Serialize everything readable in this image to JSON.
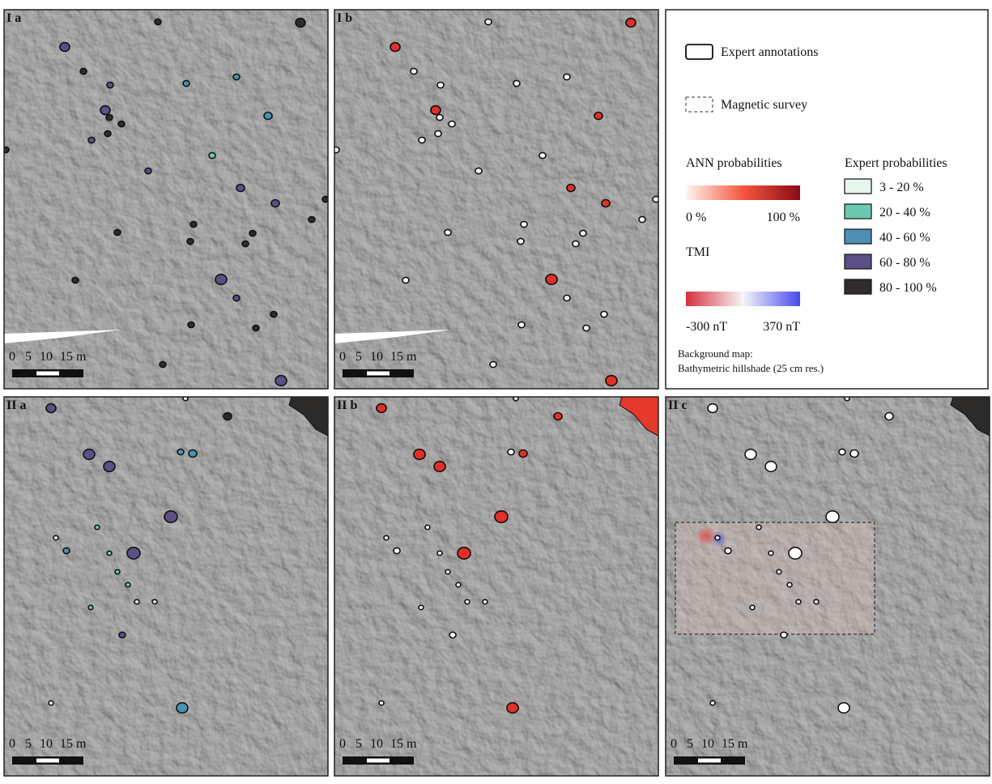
{
  "panels": [
    {
      "label": "I a"
    },
    {
      "label": "I b"
    },
    {
      "label": "II a"
    },
    {
      "label": "II b"
    },
    {
      "label": "II c"
    }
  ],
  "scale_bar": {
    "labels": [
      "0",
      "5",
      "10",
      "15 m"
    ]
  },
  "legend": {
    "expert_annotations": "Expert annotations",
    "magnetic_survey": "Magnetic survey",
    "ann_title": "ANN probabilities",
    "ann_min": "0 %",
    "ann_max": "100 %",
    "tmi_title": "TMI",
    "tmi_min": "-300 nT",
    "tmi_max": "370 nT",
    "background_title": "Background map:",
    "background_text": "Bathymetric hillshade (25 cm res.)",
    "expert_title": "Expert probabilities",
    "expert_classes": [
      "3 - 20 %",
      "20 - 40 %",
      "40 - 60 %",
      "60 - 80 %",
      "80 - 100 %"
    ]
  }
}
